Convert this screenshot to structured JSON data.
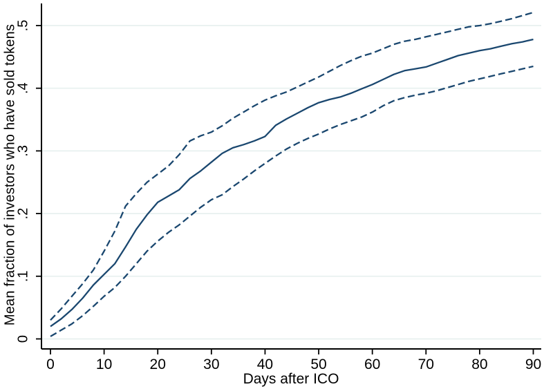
{
  "chart_data": {
    "type": "line",
    "title": "",
    "xlabel": "Days after ICO",
    "ylabel": "Mean fraction of investors who have sold tokens",
    "xlim": [
      0,
      90
    ],
    "ylim": [
      0,
      0.5
    ],
    "grid": "horizontal",
    "legend": "none",
    "x_ticks": {
      "values": [
        0,
        10,
        20,
        30,
        40,
        50,
        60,
        70,
        80,
        90
      ],
      "labels": [
        "0",
        "10",
        "20",
        "30",
        "40",
        "50",
        "60",
        "70",
        "80",
        "90"
      ]
    },
    "y_ticks": {
      "values": [
        0,
        0.1,
        0.2,
        0.3,
        0.4,
        0.5
      ],
      "labels": [
        "0",
        ".1",
        ".2",
        ".3",
        ".4",
        ".5"
      ]
    },
    "colors": {
      "line": "#1a476f",
      "grid": "#e7f0ef",
      "axis": "#000000",
      "background": "#ffffff"
    },
    "x": [
      0,
      2,
      4,
      6,
      8,
      10,
      12,
      14,
      16,
      18,
      20,
      22,
      24,
      26,
      28,
      30,
      32,
      34,
      36,
      38,
      40,
      42,
      44,
      46,
      48,
      50,
      52,
      54,
      56,
      58,
      60,
      62,
      64,
      66,
      68,
      70,
      72,
      74,
      76,
      78,
      80,
      82,
      84,
      86,
      88,
      90
    ],
    "series": [
      {
        "name": "mean",
        "style": "solid",
        "values": [
          0.02,
          0.032,
          0.047,
          0.065,
          0.086,
          0.103,
          0.12,
          0.147,
          0.175,
          0.198,
          0.218,
          0.228,
          0.238,
          0.256,
          0.268,
          0.282,
          0.296,
          0.305,
          0.31,
          0.316,
          0.323,
          0.341,
          0.351,
          0.36,
          0.369,
          0.377,
          0.382,
          0.386,
          0.392,
          0.399,
          0.406,
          0.414,
          0.422,
          0.428,
          0.431,
          0.434,
          0.44,
          0.446,
          0.452,
          0.456,
          0.46,
          0.463,
          0.467,
          0.471,
          0.474,
          0.478
        ]
      },
      {
        "name": "ci_upper",
        "style": "dashed",
        "values": [
          0.03,
          0.048,
          0.068,
          0.088,
          0.11,
          0.14,
          0.172,
          0.212,
          0.232,
          0.25,
          0.263,
          0.276,
          0.294,
          0.316,
          0.324,
          0.33,
          0.34,
          0.352,
          0.362,
          0.372,
          0.381,
          0.388,
          0.394,
          0.402,
          0.41,
          0.418,
          0.427,
          0.436,
          0.444,
          0.451,
          0.456,
          0.463,
          0.47,
          0.475,
          0.478,
          0.482,
          0.486,
          0.49,
          0.494,
          0.498,
          0.5,
          0.503,
          0.507,
          0.511,
          0.516,
          0.521
        ]
      },
      {
        "name": "ci_lower",
        "style": "dashed",
        "values": [
          0.004,
          0.014,
          0.024,
          0.037,
          0.052,
          0.068,
          0.082,
          0.1,
          0.12,
          0.14,
          0.156,
          0.17,
          0.182,
          0.196,
          0.21,
          0.222,
          0.23,
          0.243,
          0.255,
          0.268,
          0.28,
          0.292,
          0.303,
          0.312,
          0.32,
          0.327,
          0.335,
          0.342,
          0.348,
          0.354,
          0.362,
          0.372,
          0.38,
          0.385,
          0.389,
          0.392,
          0.396,
          0.401,
          0.406,
          0.411,
          0.415,
          0.419,
          0.423,
          0.427,
          0.431,
          0.435
        ]
      }
    ]
  }
}
